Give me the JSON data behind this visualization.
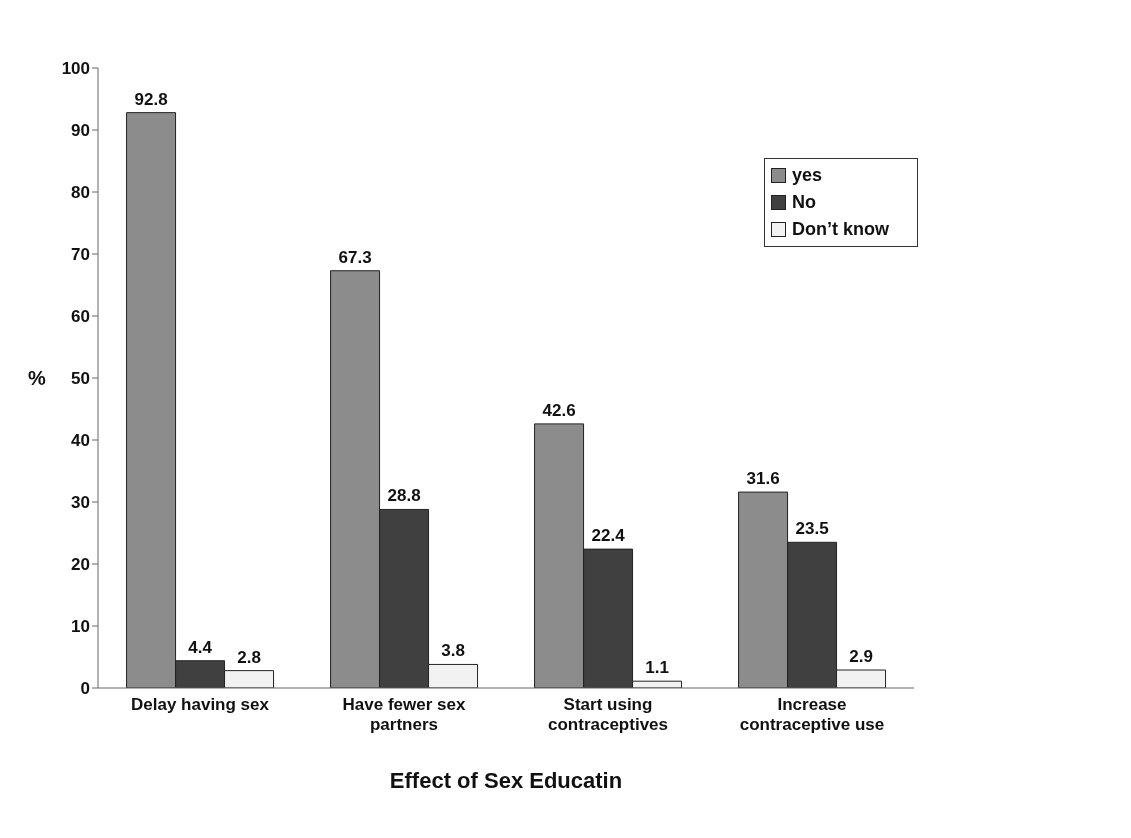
{
  "chart_data": {
    "type": "bar",
    "xlabel": "Effect of Sex Educatin",
    "ylabel": "%",
    "categories": [
      "Delay  having sex",
      "Have fewer sex partners",
      "Start using contraceptives",
      "Increase contraceptive use"
    ],
    "series": [
      {
        "name": "yes",
        "color": "#8c8c8c",
        "values": [
          92.8,
          67.3,
          42.6,
          31.6
        ]
      },
      {
        "name": "No",
        "color": "#404040",
        "values": [
          4.4,
          28.8,
          22.4,
          23.5
        ]
      },
      {
        "name": "Don’t know",
        "color": "#f2f2f2",
        "values": [
          2.8,
          3.8,
          1.1,
          2.9
        ]
      }
    ],
    "ylim": [
      0,
      100
    ],
    "yticks": [
      0,
      10,
      20,
      30,
      40,
      50,
      60,
      70,
      80,
      90,
      100
    ],
    "grid": false,
    "legend": "top right",
    "data_labels": true
  }
}
